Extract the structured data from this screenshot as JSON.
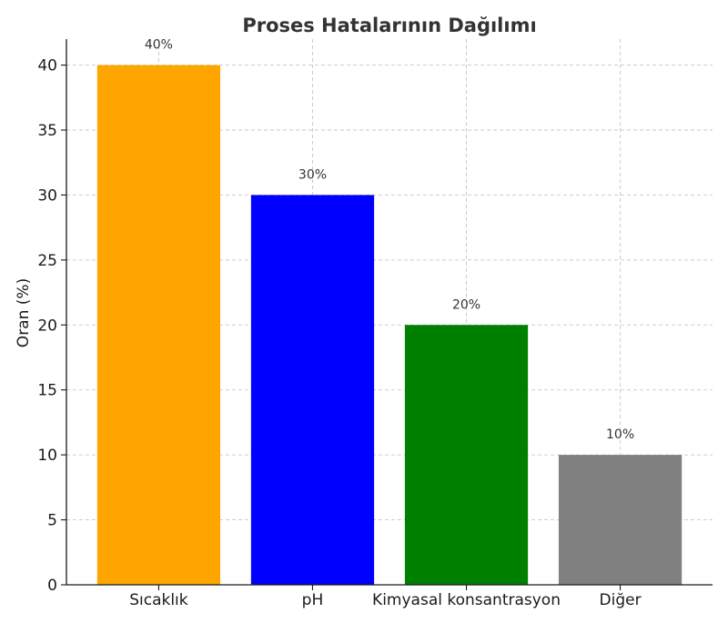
{
  "chart_data": {
    "type": "bar",
    "title": "Proses Hatalarının Dağılımı",
    "xlabel": "",
    "ylabel": "Oran (%)",
    "categories": [
      "Sıcaklık",
      "pH",
      "Kimyasal konsantrasyon",
      "Diğer"
    ],
    "values": [
      40,
      30,
      20,
      10
    ],
    "data_labels": [
      "40%",
      "30%",
      "20%",
      "10%"
    ],
    "colors": [
      "#FFA500",
      "#0000FF",
      "#008000",
      "#808080"
    ],
    "ylim": [
      0,
      42
    ],
    "yticks": [
      0,
      5,
      10,
      15,
      20,
      25,
      30,
      35,
      40
    ],
    "ytick_labels": [
      "0",
      "5",
      "10",
      "15",
      "20",
      "25",
      "30",
      "35",
      "40"
    ],
    "grid": true,
    "legend": "none"
  }
}
